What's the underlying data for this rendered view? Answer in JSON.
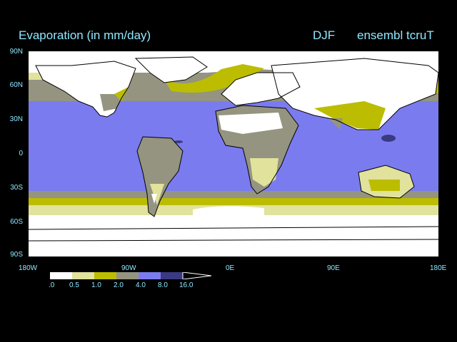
{
  "header": {
    "title": "Evaporation (in mm/day)",
    "season": "DJF",
    "model": "ensembl tcruT"
  },
  "axes": {
    "y_ticks": [
      "90N",
      "60N",
      "30N",
      "0",
      "30S",
      "60S",
      "90S"
    ],
    "x_ticks": [
      "180W",
      "90W",
      "0E",
      "90E",
      "180E"
    ]
  },
  "colorbar": {
    "levels": [
      ".0",
      "0.5",
      "1.0",
      "2.0",
      "4.0",
      "8.0",
      "16.0"
    ],
    "colors": [
      "#ffffff",
      "#e1e29b",
      "#bcbd00",
      "#949480",
      "#7b7bf0",
      "#3a3a82"
    ]
  },
  "map": {
    "background_color": "#7b7bf0",
    "coastline_color": "#000000"
  }
}
